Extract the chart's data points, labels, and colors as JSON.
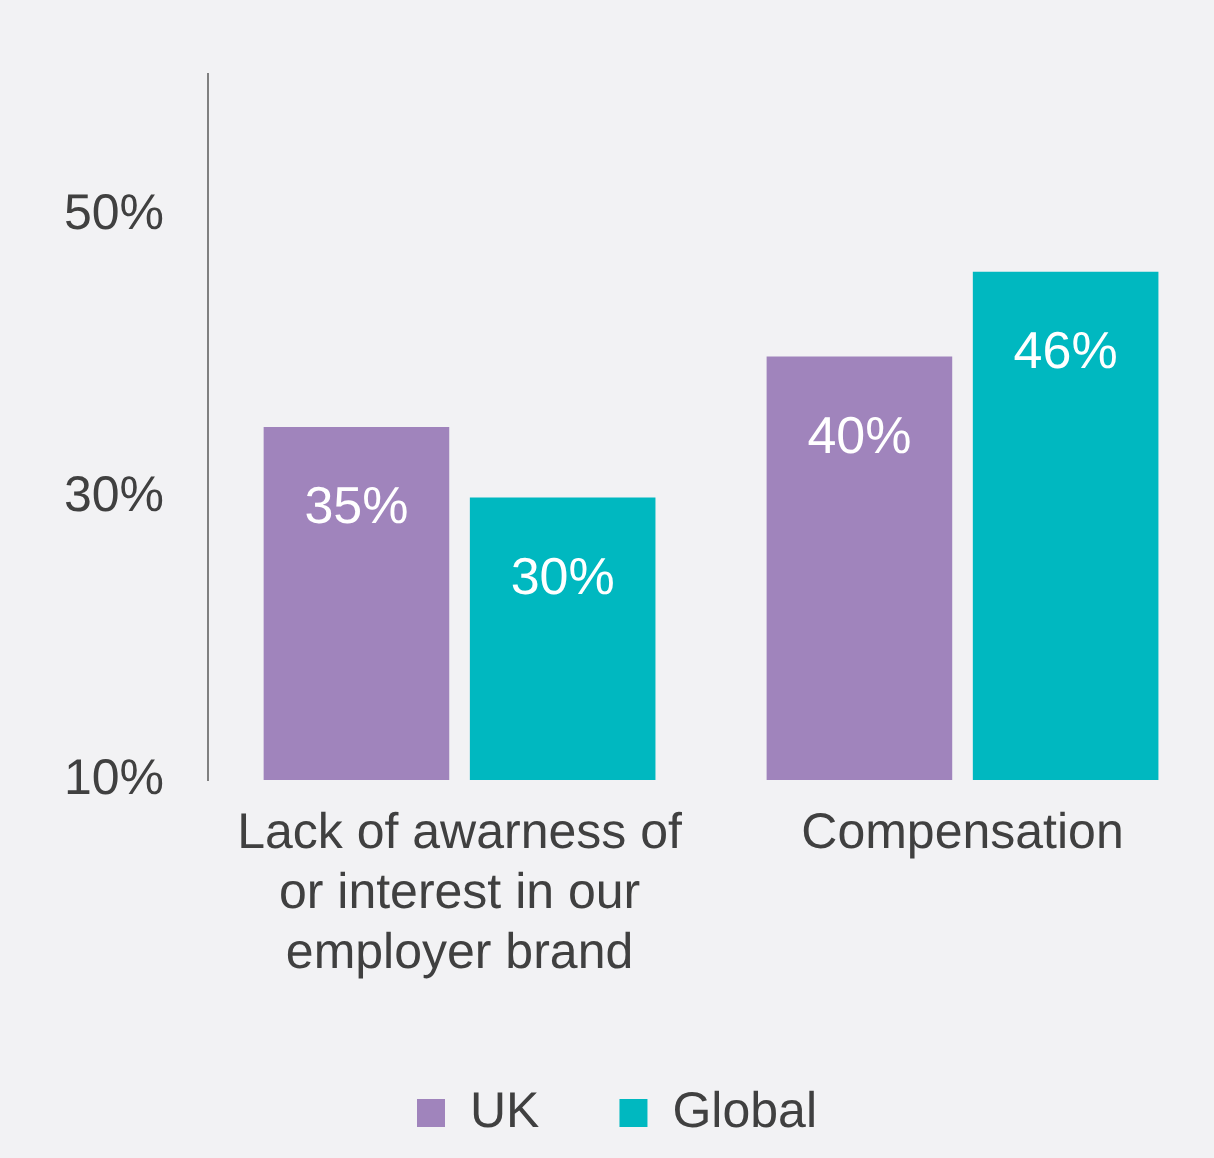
{
  "chart_data": {
    "type": "bar",
    "categories": [
      "Lack of awarness of or interest in our employer brand",
      "Compensation"
    ],
    "series": [
      {
        "name": "UK",
        "color": "#a084bc",
        "values": [
          35,
          40
        ],
        "value_labels": [
          "35%",
          "40%"
        ]
      },
      {
        "name": "Global",
        "color": "#00b8c0",
        "values": [
          30,
          46
        ],
        "value_labels": [
          "30%",
          "46%"
        ]
      }
    ],
    "ylim": [
      10,
      60
    ],
    "yticks": [
      {
        "value": 10,
        "label": "10%"
      },
      {
        "value": 30,
        "label": "30%"
      },
      {
        "value": 50,
        "label": "50%"
      }
    ],
    "grid": false,
    "legend": "bottom"
  }
}
